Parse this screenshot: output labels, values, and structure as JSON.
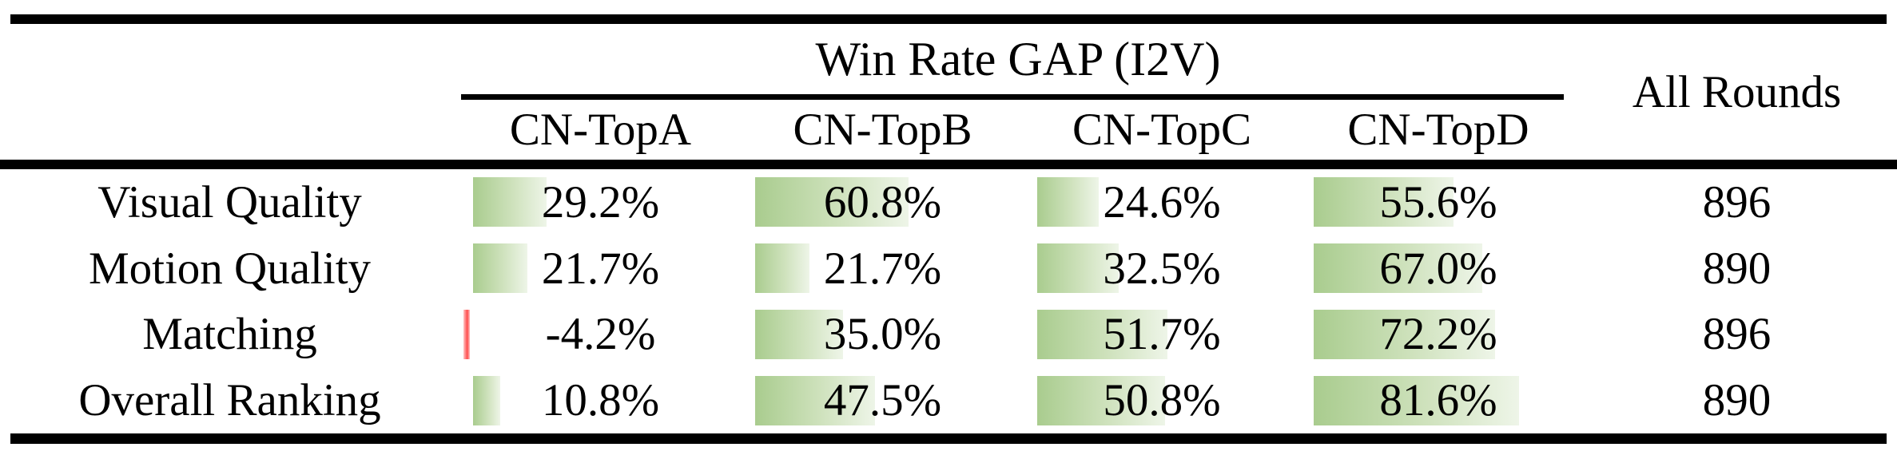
{
  "table": {
    "title": "Win Rate GAP (I2V)",
    "all_rounds_header": "All Rounds",
    "columns": [
      "CN-TopA",
      "CN-TopB",
      "CN-TopC",
      "CN-TopD"
    ],
    "rows": [
      {
        "label": "Visual Quality",
        "values": [
          29.2,
          60.8,
          24.6,
          55.6
        ],
        "display": [
          "29.2%",
          "60.8%",
          "24.6%",
          "55.6%"
        ],
        "all_rounds": "896"
      },
      {
        "label": "Motion Quality",
        "values": [
          21.7,
          21.7,
          32.5,
          67.0
        ],
        "display": [
          "21.7%",
          "21.7%",
          "32.5%",
          "67.0%"
        ],
        "all_rounds": "890"
      },
      {
        "label": "Matching",
        "values": [
          -4.2,
          35.0,
          51.7,
          72.2
        ],
        "display": [
          "-4.2%",
          "35.0%",
          "51.7%",
          "72.2%"
        ],
        "all_rounds": "896"
      },
      {
        "label": "Overall Ranking",
        "values": [
          10.8,
          47.5,
          50.8,
          81.6
        ],
        "display": [
          "10.8%",
          "47.5%",
          "50.8%",
          "81.6%"
        ],
        "all_rounds": "890"
      }
    ],
    "colors": {
      "bar_green_start": "#a9cc8e",
      "bar_green_mid": "#cfe2bd",
      "bar_green_end": "#eef5e8",
      "bar_red": "#ff4d4d",
      "bar_red_light": "#ffc4c4",
      "rule": "#000000",
      "text": "#000000"
    }
  },
  "chart_data": {
    "type": "table",
    "title": "Win Rate GAP (I2V)",
    "categories": [
      "Visual Quality",
      "Motion Quality",
      "Matching",
      "Overall Ranking"
    ],
    "series": [
      {
        "name": "CN-TopA",
        "values": [
          29.2,
          21.7,
          -4.2,
          10.8
        ]
      },
      {
        "name": "CN-TopB",
        "values": [
          60.8,
          21.7,
          35.0,
          47.5
        ]
      },
      {
        "name": "CN-TopC",
        "values": [
          24.6,
          32.5,
          51.7,
          50.8
        ]
      },
      {
        "name": "CN-TopD",
        "values": [
          55.6,
          67.0,
          72.2,
          81.6
        ]
      }
    ],
    "extra_columns": [
      {
        "name": "All Rounds",
        "values": [
          896,
          890,
          896,
          890
        ]
      }
    ],
    "unit": "%",
    "layout": "table with in-cell data bars; green bar width proportional to positive win-rate gap, thin red bar marks negative value, black booktabs-style horizontal rules"
  }
}
